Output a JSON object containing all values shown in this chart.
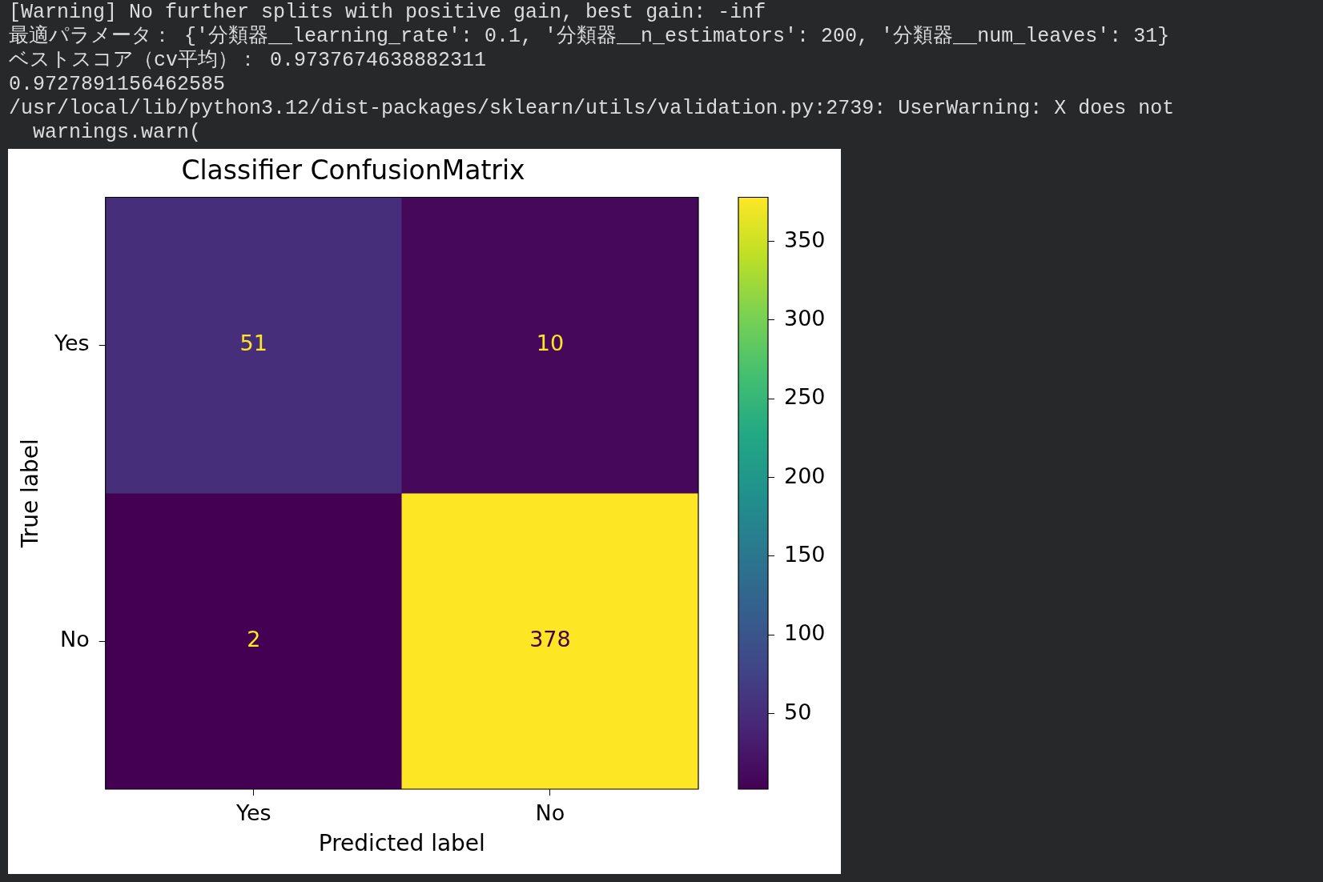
{
  "chart_data": {
    "type": "heatmap",
    "title": "Classifier ConfusionMatrix",
    "xlabel": "Predicted label",
    "ylabel": "True label",
    "categories": [
      "Yes",
      "No"
    ],
    "y_categories": [
      "Yes",
      "No"
    ],
    "cells": [
      [
        51,
        10
      ],
      [
        2,
        378
      ]
    ],
    "data_labels": true,
    "clim": [
      2,
      378
    ],
    "cticks": [
      50,
      100,
      150,
      200,
      250,
      300,
      350
    ],
    "annotations": [
      "[Warning] No further splits with positive gain, best gain: -inf",
      "最適パラメータ： {'分類器__learning_rate': 0.1, '分類器__n_estimators': 200, '分類器__num_leaves': 31}",
      "ベストスコア（cv平均）： 0.9737674638882311",
      "0.9727891156462585",
      "/usr/local/lib/python3.12/dist-packages/sklearn/utils/validation.py:2739: UserWarning: X does not",
      "  warnings.warn("
    ]
  }
}
